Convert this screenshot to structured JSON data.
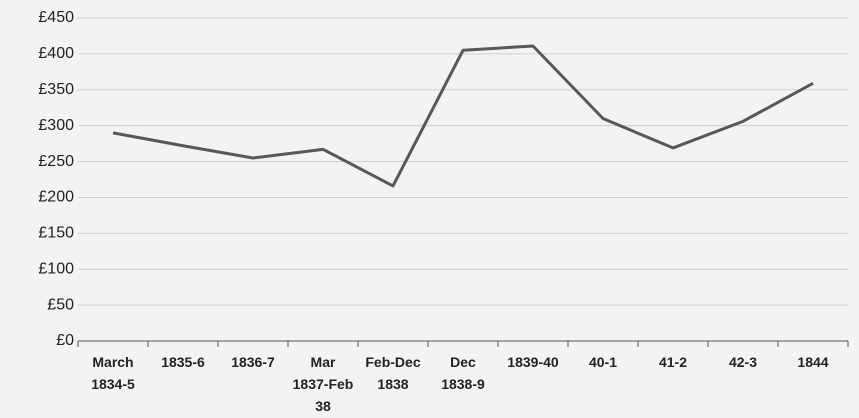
{
  "chart_data": {
    "type": "line",
    "categories": [
      "March 1834-5",
      "1835-6",
      "1836-7",
      "Mar 1837-Feb 38",
      "Feb-Dec 1838",
      "Dec 1838-9",
      "1839-40",
      "40-1",
      "41-2",
      "42-3",
      "1844"
    ],
    "values": [
      290,
      272,
      255,
      267,
      216,
      405,
      411,
      310,
      269,
      306,
      359
    ],
    "color": "#585858",
    "ylim": [
      0,
      450
    ],
    "yticks": [
      {
        "value": 0,
        "label": "£0"
      },
      {
        "value": 50,
        "label": "£50"
      },
      {
        "value": 100,
        "label": "£100"
      },
      {
        "value": 150,
        "label": "£150"
      },
      {
        "value": 200,
        "label": "£200"
      },
      {
        "value": 250,
        "label": "£250"
      },
      {
        "value": 300,
        "label": "£300"
      },
      {
        "value": 350,
        "label": "£350"
      },
      {
        "value": 400,
        "label": "£400"
      },
      {
        "value": 450,
        "label": "£450"
      }
    ],
    "grid": true
  }
}
